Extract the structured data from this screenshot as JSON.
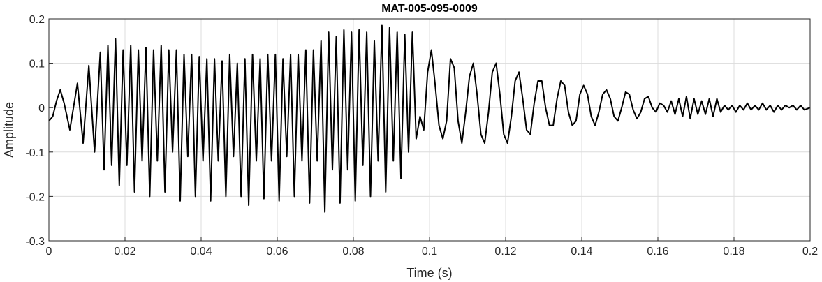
{
  "chart_data": {
    "type": "line",
    "title": "MAT-005-095-0009",
    "xlabel": "Time (s)",
    "ylabel": "Amplitude",
    "xlim": [
      0,
      0.2
    ],
    "ylim": [
      -0.3,
      0.2
    ],
    "grid": true,
    "x_ticks": [
      0,
      0.02,
      0.04,
      0.06,
      0.08,
      0.1,
      0.12,
      0.14,
      0.16,
      0.18,
      0.2
    ],
    "x_tick_labels": [
      "0",
      "0.02",
      "0.04",
      "0.06",
      "0.08",
      "0.1",
      "0.12",
      "0.14",
      "0.16",
      "0.18",
      "0.2"
    ],
    "y_ticks": [
      -0.3,
      -0.2,
      -0.1,
      0,
      0.1,
      0.2
    ],
    "y_tick_labels": [
      "-0.3",
      "-0.2",
      "-0.1",
      "0",
      "0.1",
      "0.2"
    ],
    "series": [
      {
        "color": "#000000",
        "points": [
          {
            "x": 0.0,
            "y": -0.03
          },
          {
            "x": 0.001,
            "y": -0.02
          },
          {
            "x": 0.002,
            "y": 0.015
          },
          {
            "x": 0.003,
            "y": 0.04
          },
          {
            "x": 0.004,
            "y": 0.01
          },
          {
            "x": 0.0055,
            "y": -0.05
          },
          {
            "x": 0.0075,
            "y": 0.055
          },
          {
            "x": 0.009,
            "y": -0.08
          },
          {
            "x": 0.0105,
            "y": 0.095
          },
          {
            "x": 0.012,
            "y": -0.1
          },
          {
            "x": 0.0135,
            "y": 0.125
          },
          {
            "x": 0.0145,
            "y": -0.14
          },
          {
            "x": 0.0155,
            "y": 0.14
          },
          {
            "x": 0.0165,
            "y": -0.13
          },
          {
            "x": 0.0175,
            "y": 0.155
          },
          {
            "x": 0.0185,
            "y": -0.175
          },
          {
            "x": 0.0195,
            "y": 0.13
          },
          {
            "x": 0.0205,
            "y": -0.13
          },
          {
            "x": 0.0215,
            "y": 0.14
          },
          {
            "x": 0.0225,
            "y": -0.19
          },
          {
            "x": 0.0235,
            "y": 0.13
          },
          {
            "x": 0.0245,
            "y": -0.12
          },
          {
            "x": 0.0255,
            "y": 0.135
          },
          {
            "x": 0.0265,
            "y": -0.2
          },
          {
            "x": 0.0275,
            "y": 0.13
          },
          {
            "x": 0.0285,
            "y": -0.12
          },
          {
            "x": 0.0295,
            "y": 0.14
          },
          {
            "x": 0.0305,
            "y": -0.19
          },
          {
            "x": 0.0315,
            "y": 0.13
          },
          {
            "x": 0.0325,
            "y": -0.1
          },
          {
            "x": 0.0335,
            "y": 0.13
          },
          {
            "x": 0.0345,
            "y": -0.21
          },
          {
            "x": 0.0355,
            "y": 0.12
          },
          {
            "x": 0.0365,
            "y": -0.11
          },
          {
            "x": 0.0375,
            "y": 0.12
          },
          {
            "x": 0.0385,
            "y": -0.2
          },
          {
            "x": 0.0395,
            "y": 0.115
          },
          {
            "x": 0.0405,
            "y": -0.12
          },
          {
            "x": 0.0415,
            "y": 0.11
          },
          {
            "x": 0.0425,
            "y": -0.21
          },
          {
            "x": 0.0435,
            "y": 0.11
          },
          {
            "x": 0.0445,
            "y": -0.12
          },
          {
            "x": 0.0455,
            "y": 0.105
          },
          {
            "x": 0.0465,
            "y": -0.2
          },
          {
            "x": 0.0475,
            "y": 0.12
          },
          {
            "x": 0.0485,
            "y": -0.11
          },
          {
            "x": 0.0495,
            "y": 0.1
          },
          {
            "x": 0.0505,
            "y": -0.2
          },
          {
            "x": 0.0515,
            "y": 0.11
          },
          {
            "x": 0.0525,
            "y": -0.22
          },
          {
            "x": 0.0535,
            "y": 0.12
          },
          {
            "x": 0.0545,
            "y": -0.12
          },
          {
            "x": 0.0555,
            "y": 0.11
          },
          {
            "x": 0.0565,
            "y": -0.205
          },
          {
            "x": 0.0575,
            "y": 0.12
          },
          {
            "x": 0.0585,
            "y": -0.12
          },
          {
            "x": 0.0595,
            "y": 0.12
          },
          {
            "x": 0.0605,
            "y": -0.21
          },
          {
            "x": 0.0615,
            "y": 0.11
          },
          {
            "x": 0.0625,
            "y": -0.11
          },
          {
            "x": 0.0635,
            "y": 0.12
          },
          {
            "x": 0.0645,
            "y": -0.2
          },
          {
            "x": 0.0655,
            "y": 0.12
          },
          {
            "x": 0.0665,
            "y": -0.12
          },
          {
            "x": 0.0675,
            "y": 0.13
          },
          {
            "x": 0.0685,
            "y": -0.215
          },
          {
            "x": 0.0695,
            "y": 0.13
          },
          {
            "x": 0.0705,
            "y": -0.12
          },
          {
            "x": 0.0715,
            "y": 0.15
          },
          {
            "x": 0.0725,
            "y": -0.235
          },
          {
            "x": 0.0735,
            "y": 0.17
          },
          {
            "x": 0.0745,
            "y": -0.14
          },
          {
            "x": 0.0755,
            "y": 0.16
          },
          {
            "x": 0.0765,
            "y": -0.215
          },
          {
            "x": 0.0775,
            "y": 0.175
          },
          {
            "x": 0.0785,
            "y": -0.14
          },
          {
            "x": 0.0795,
            "y": 0.17
          },
          {
            "x": 0.0805,
            "y": -0.21
          },
          {
            "x": 0.0815,
            "y": 0.175
          },
          {
            "x": 0.0825,
            "y": -0.13
          },
          {
            "x": 0.0835,
            "y": 0.17
          },
          {
            "x": 0.0845,
            "y": -0.2
          },
          {
            "x": 0.0855,
            "y": 0.15
          },
          {
            "x": 0.0865,
            "y": -0.12
          },
          {
            "x": 0.0875,
            "y": 0.185
          },
          {
            "x": 0.0885,
            "y": -0.19
          },
          {
            "x": 0.0895,
            "y": 0.18
          },
          {
            "x": 0.0905,
            "y": -0.12
          },
          {
            "x": 0.0915,
            "y": 0.17
          },
          {
            "x": 0.0925,
            "y": -0.16
          },
          {
            "x": 0.0935,
            "y": 0.165
          },
          {
            "x": 0.0945,
            "y": -0.1
          },
          {
            "x": 0.0955,
            "y": 0.17
          },
          {
            "x": 0.0965,
            "y": -0.07
          },
          {
            "x": 0.0975,
            "y": -0.02
          },
          {
            "x": 0.0985,
            "y": -0.05
          },
          {
            "x": 0.0995,
            "y": 0.08
          },
          {
            "x": 0.1005,
            "y": 0.13
          },
          {
            "x": 0.1015,
            "y": 0.05
          },
          {
            "x": 0.1025,
            "y": -0.04
          },
          {
            "x": 0.1035,
            "y": -0.07
          },
          {
            "x": 0.1045,
            "y": -0.03
          },
          {
            "x": 0.1055,
            "y": 0.11
          },
          {
            "x": 0.1065,
            "y": 0.09
          },
          {
            "x": 0.1075,
            "y": -0.03
          },
          {
            "x": 0.1085,
            "y": -0.08
          },
          {
            "x": 0.1095,
            "y": -0.01
          },
          {
            "x": 0.1105,
            "y": 0.07
          },
          {
            "x": 0.1115,
            "y": 0.1
          },
          {
            "x": 0.1125,
            "y": 0.03
          },
          {
            "x": 0.1135,
            "y": -0.06
          },
          {
            "x": 0.1145,
            "y": -0.08
          },
          {
            "x": 0.1155,
            "y": -0.01
          },
          {
            "x": 0.1165,
            "y": 0.08
          },
          {
            "x": 0.1175,
            "y": 0.1
          },
          {
            "x": 0.1185,
            "y": 0.03
          },
          {
            "x": 0.1195,
            "y": -0.06
          },
          {
            "x": 0.1205,
            "y": -0.08
          },
          {
            "x": 0.1215,
            "y": -0.02
          },
          {
            "x": 0.1225,
            "y": 0.06
          },
          {
            "x": 0.1235,
            "y": 0.08
          },
          {
            "x": 0.1245,
            "y": 0.02
          },
          {
            "x": 0.1255,
            "y": -0.05
          },
          {
            "x": 0.1265,
            "y": -0.06
          },
          {
            "x": 0.1275,
            "y": 0.01
          },
          {
            "x": 0.1285,
            "y": 0.06
          },
          {
            "x": 0.1295,
            "y": 0.06
          },
          {
            "x": 0.1305,
            "y": 0.0
          },
          {
            "x": 0.1315,
            "y": -0.04
          },
          {
            "x": 0.1325,
            "y": -0.04
          },
          {
            "x": 0.1335,
            "y": 0.02
          },
          {
            "x": 0.1345,
            "y": 0.06
          },
          {
            "x": 0.1355,
            "y": 0.05
          },
          {
            "x": 0.1365,
            "y": -0.01
          },
          {
            "x": 0.1375,
            "y": -0.04
          },
          {
            "x": 0.1385,
            "y": -0.03
          },
          {
            "x": 0.1395,
            "y": 0.03
          },
          {
            "x": 0.1405,
            "y": 0.05
          },
          {
            "x": 0.1415,
            "y": 0.03
          },
          {
            "x": 0.1425,
            "y": -0.02
          },
          {
            "x": 0.1435,
            "y": -0.04
          },
          {
            "x": 0.1445,
            "y": -0.01
          },
          {
            "x": 0.1455,
            "y": 0.03
          },
          {
            "x": 0.1465,
            "y": 0.04
          },
          {
            "x": 0.1475,
            "y": 0.02
          },
          {
            "x": 0.1485,
            "y": -0.02
          },
          {
            "x": 0.1495,
            "y": -0.03
          },
          {
            "x": 0.1505,
            "y": 0.0
          },
          {
            "x": 0.1515,
            "y": 0.035
          },
          {
            "x": 0.1525,
            "y": 0.03
          },
          {
            "x": 0.1535,
            "y": -0.005
          },
          {
            "x": 0.1545,
            "y": -0.025
          },
          {
            "x": 0.1555,
            "y": -0.01
          },
          {
            "x": 0.1565,
            "y": 0.02
          },
          {
            "x": 0.1575,
            "y": 0.025
          },
          {
            "x": 0.1585,
            "y": 0.0
          },
          {
            "x": 0.1595,
            "y": -0.01
          },
          {
            "x": 0.1605,
            "y": 0.01
          },
          {
            "x": 0.1615,
            "y": 0.005
          },
          {
            "x": 0.1625,
            "y": -0.01
          },
          {
            "x": 0.1635,
            "y": 0.015
          },
          {
            "x": 0.1645,
            "y": -0.015
          },
          {
            "x": 0.1655,
            "y": 0.02
          },
          {
            "x": 0.1665,
            "y": -0.02
          },
          {
            "x": 0.1675,
            "y": 0.025
          },
          {
            "x": 0.1685,
            "y": -0.025
          },
          {
            "x": 0.1695,
            "y": 0.02
          },
          {
            "x": 0.1705,
            "y": -0.015
          },
          {
            "x": 0.1715,
            "y": 0.015
          },
          {
            "x": 0.1725,
            "y": -0.015
          },
          {
            "x": 0.1735,
            "y": 0.02
          },
          {
            "x": 0.1745,
            "y": -0.02
          },
          {
            "x": 0.1755,
            "y": 0.02
          },
          {
            "x": 0.1765,
            "y": -0.01
          },
          {
            "x": 0.1775,
            "y": 0.005
          },
          {
            "x": 0.1785,
            "y": -0.005
          },
          {
            "x": 0.1795,
            "y": 0.005
          },
          {
            "x": 0.1805,
            "y": -0.01
          },
          {
            "x": 0.1815,
            "y": 0.005
          },
          {
            "x": 0.1825,
            "y": -0.005
          },
          {
            "x": 0.1835,
            "y": 0.01
          },
          {
            "x": 0.1845,
            "y": -0.005
          },
          {
            "x": 0.1855,
            "y": 0.005
          },
          {
            "x": 0.1865,
            "y": -0.005
          },
          {
            "x": 0.1875,
            "y": 0.01
          },
          {
            "x": 0.1885,
            "y": -0.005
          },
          {
            "x": 0.1895,
            "y": 0.005
          },
          {
            "x": 0.1905,
            "y": -0.01
          },
          {
            "x": 0.1915,
            "y": 0.005
          },
          {
            "x": 0.1925,
            "y": -0.005
          },
          {
            "x": 0.1935,
            "y": 0.005
          },
          {
            "x": 0.1945,
            "y": 0.0
          },
          {
            "x": 0.1955,
            "y": 0.005
          },
          {
            "x": 0.1965,
            "y": -0.005
          },
          {
            "x": 0.1975,
            "y": 0.005
          },
          {
            "x": 0.1985,
            "y": -0.005
          },
          {
            "x": 0.2,
            "y": 0.0
          }
        ]
      }
    ]
  }
}
